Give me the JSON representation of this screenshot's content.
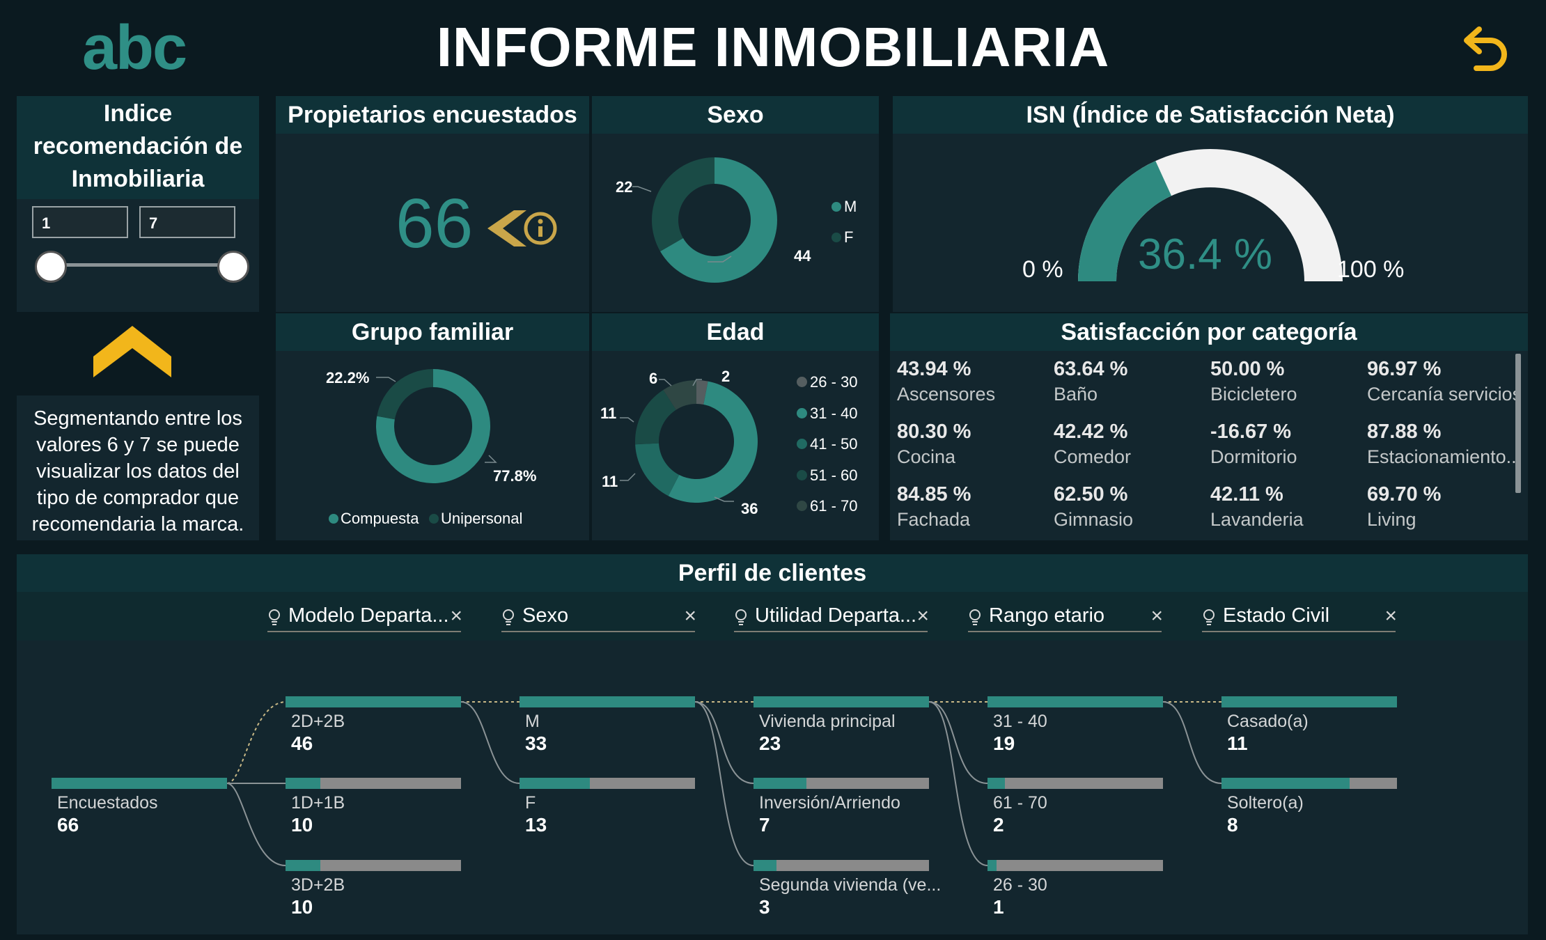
{
  "header": {
    "logo": "abc",
    "title": "INFORME INMOBILIARIA",
    "back_icon": "back-arrow-icon",
    "accent_color": "#f2b61b",
    "teal_color": "#2e8a80"
  },
  "slider": {
    "title": "Indice recomendación de Inmobiliaria",
    "min_value": "1",
    "max_value": "7"
  },
  "info": {
    "chevron_icon": "chevron-up-icon",
    "text": "Segmentando entre los valores 6 y 7 se puede visualizar los datos del tipo de comprador que recomendaria la marca."
  },
  "owners": {
    "title": "Propietarios encuestados",
    "value": "66",
    "info_icon": "info-icon"
  },
  "sexo": {
    "title": "Sexo",
    "chart_data": {
      "type": "pie",
      "categories": [
        "M",
        "F"
      ],
      "values": [
        44,
        22
      ]
    },
    "labels": [
      "22",
      "44"
    ],
    "legend": [
      "M",
      "F"
    ]
  },
  "isn": {
    "title": "ISN (Índice de Satisfacción Neta)",
    "chart_data": {
      "type": "gauge",
      "value": 36.4,
      "min": 0,
      "max": 100
    },
    "value_label": "36.4 %",
    "min_label": "0 %",
    "max_label": "100 %"
  },
  "grupo": {
    "title": "Grupo familiar",
    "chart_data": {
      "type": "pie",
      "categories": [
        "Compuesta",
        "Unipersonal"
      ],
      "values": [
        77.8,
        22.2
      ]
    },
    "labels": [
      "22.2%",
      "77.8%"
    ],
    "legend": [
      "Compuesta",
      "Unipersonal"
    ]
  },
  "edad": {
    "title": "Edad",
    "chart_data": {
      "type": "pie",
      "categories": [
        "26 - 30",
        "31 - 40",
        "41 - 50",
        "51 - 60",
        "61 - 70"
      ],
      "values": [
        2,
        36,
        11,
        11,
        6
      ]
    },
    "labels": [
      "6",
      "2",
      "11",
      "11",
      "36"
    ],
    "legend": [
      "26 - 30",
      "31 - 40",
      "41 - 50",
      "51 - 60",
      "61 - 70"
    ]
  },
  "satisfaccion": {
    "title": "Satisfacción por categoría",
    "items": [
      {
        "value": "43.94 %",
        "label": "Ascensores"
      },
      {
        "value": "63.64 %",
        "label": "Baño"
      },
      {
        "value": "50.00 %",
        "label": "Bicicletero"
      },
      {
        "value": "96.97 %",
        "label": "Cercanía servicios"
      },
      {
        "value": "80.30 %",
        "label": "Cocina"
      },
      {
        "value": "42.42 %",
        "label": "Comedor"
      },
      {
        "value": "-16.67 %",
        "label": "Dormitorio"
      },
      {
        "value": "87.88 %",
        "label": "Estacionamiento..."
      },
      {
        "value": "84.85 %",
        "label": "Fachada"
      },
      {
        "value": "62.50 %",
        "label": "Gimnasio"
      },
      {
        "value": "42.11 %",
        "label": "Lavanderia"
      },
      {
        "value": "69.70 %",
        "label": "Living"
      }
    ]
  },
  "perfil": {
    "title": "Perfil de clientes",
    "slicers": [
      "Modelo Departa...",
      "Sexo",
      "Utilidad Departa...",
      "Rango etario",
      "Estado Civil"
    ],
    "root": {
      "name": "Encuestados",
      "value": "66",
      "fill": 1.0
    },
    "columns": [
      [
        {
          "name": "2D+2B",
          "value": "46",
          "fill": 1.0
        },
        {
          "name": "1D+1B",
          "value": "10",
          "fill": 0.2
        },
        {
          "name": "3D+2B",
          "value": "10",
          "fill": 0.2
        }
      ],
      [
        {
          "name": "M",
          "value": "33",
          "fill": 1.0
        },
        {
          "name": "F",
          "value": "13",
          "fill": 0.4
        }
      ],
      [
        {
          "name": "Vivienda principal",
          "value": "23",
          "fill": 1.0
        },
        {
          "name": "Inversión/Arriendo",
          "value": "7",
          "fill": 0.3
        },
        {
          "name": "Segunda vivienda (ve...",
          "value": "3",
          "fill": 0.13
        }
      ],
      [
        {
          "name": "31 - 40",
          "value": "19",
          "fill": 1.0
        },
        {
          "name": "61 - 70",
          "value": "2",
          "fill": 0.1
        },
        {
          "name": "26 - 30",
          "value": "1",
          "fill": 0.05
        }
      ],
      [
        {
          "name": "Casado(a)",
          "value": "11",
          "fill": 1.0
        },
        {
          "name": "Soltero(a)",
          "value": "8",
          "fill": 0.73
        }
      ]
    ]
  }
}
